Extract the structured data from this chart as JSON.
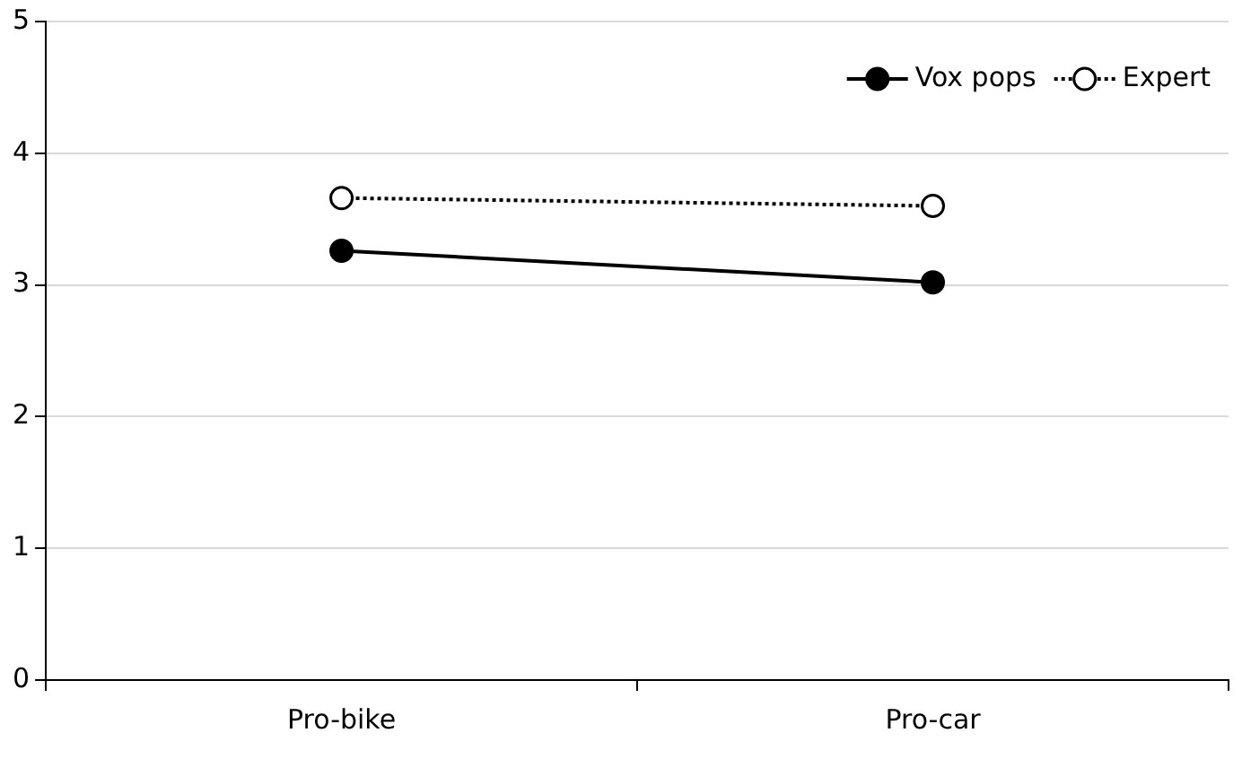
{
  "chart_data": {
    "type": "line",
    "categories": [
      "Pro-bike",
      "Pro-car"
    ],
    "series": [
      {
        "name": "Vox pops",
        "color": "#000000",
        "values": [
          3.26,
          3.02
        ],
        "line_style": "solid"
      },
      {
        "name": "Expert",
        "color": "#000000",
        "values": [
          3.66,
          3.6
        ],
        "line_style": "dotted"
      }
    ],
    "ylim": [
      0,
      5
    ],
    "yticks": [
      0,
      1,
      2,
      3,
      4,
      5
    ],
    "grid": "y",
    "legend": "top right",
    "marker": "circle"
  }
}
